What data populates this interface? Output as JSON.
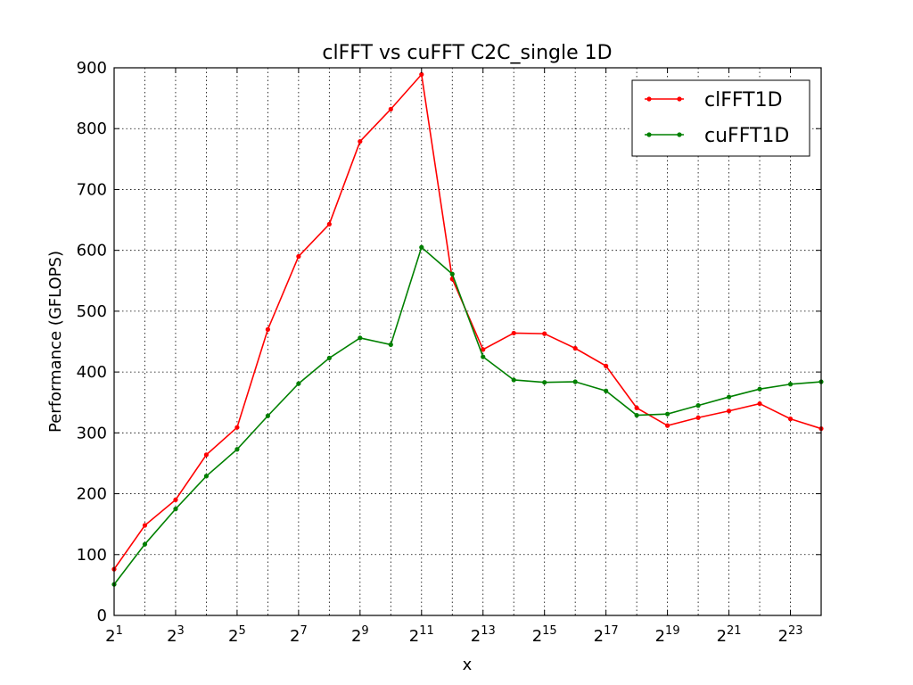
{
  "chart_data": {
    "type": "line",
    "title": "clFFT vs cuFFT C2C_single 1D",
    "xlabel": "x",
    "ylabel": "Performance (GFLOPS)",
    "x_scale": "log2",
    "x_base": "2",
    "xlim": [
      1,
      24
    ],
    "ylim": [
      0,
      900
    ],
    "x_tick_exponents": [
      "1",
      "3",
      "5",
      "7",
      "9",
      "11",
      "13",
      "15",
      "17",
      "19",
      "21",
      "23"
    ],
    "y_ticks": [
      "0",
      "100",
      "200",
      "300",
      "400",
      "500",
      "600",
      "700",
      "800",
      "900"
    ],
    "grid": true,
    "legend_position": "top-right",
    "x_exponents": [
      1,
      2,
      3,
      4,
      5,
      6,
      7,
      8,
      9,
      10,
      11,
      12,
      13,
      14,
      15,
      16,
      17,
      18,
      19,
      20,
      21,
      22,
      23,
      24
    ],
    "series": [
      {
        "name": "clFFT1D",
        "color": "#ff0000",
        "values": [
          76,
          148,
          190,
          264,
          309,
          470,
          590,
          643,
          779,
          832,
          889,
          553,
          437,
          464,
          463,
          439,
          410,
          341,
          312,
          325,
          336,
          348,
          323,
          307
        ]
      },
      {
        "name": "cuFFT1D",
        "color": "#008000",
        "values": [
          51,
          117,
          175,
          229,
          273,
          328,
          381,
          423,
          456,
          445,
          605,
          561,
          425,
          387,
          383,
          384,
          369,
          329,
          331,
          345,
          359,
          372,
          380,
          384
        ]
      }
    ]
  }
}
